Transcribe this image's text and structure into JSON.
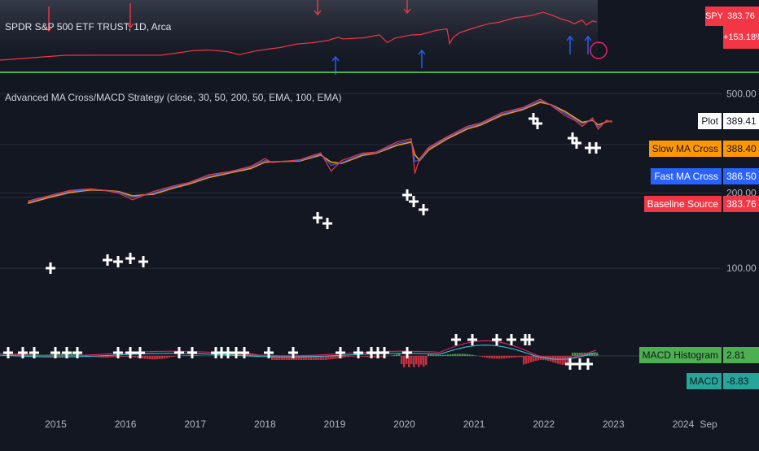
{
  "overlay": {
    "symbol_title": "SPDR S&P 500 ETF TRUST, 1D, Arca",
    "ticker": "SPY",
    "price": "383.76",
    "change": "+153.18%"
  },
  "indicator": {
    "title": "Advanced MA Cross/MACD Strategy (close, 30, 50, 200, 50, EMA, 100, EMA)"
  },
  "legend": [
    {
      "label": "Plot",
      "value": "389.41",
      "color": "#ffffff",
      "text_color": "#131722"
    },
    {
      "label": "Slow MA Cross",
      "value": "388.40",
      "color": "#ff9800",
      "text_color": "#131722"
    },
    {
      "label": "Fast MA Cross",
      "value": "386.50",
      "color": "#2962ff",
      "text_color": "#ffffff"
    },
    {
      "label": "Baseline Source",
      "value": "383.76",
      "color": "#f23645",
      "text_color": "#ffffff"
    },
    {
      "label": "MACD Histogram",
      "value": "2.81",
      "color": "#4caf50",
      "text_color": "#131722"
    },
    {
      "label": "MACD",
      "value": "-8.83",
      "color": "#26a69a",
      "text_color": "#131722"
    }
  ],
  "chart_data": {
    "type": "line",
    "x_ticks": [
      "2015",
      "2016",
      "2017",
      "2018",
      "2019",
      "2020",
      "2021",
      "2022",
      "2023",
      "2024",
      "Sep"
    ],
    "y_ticks": [
      "500.00",
      "200.00",
      "100.00"
    ],
    "y_scale": "log",
    "ylim": [
      55,
      540
    ],
    "x": [
      2014.6,
      2014.9,
      2015.2,
      2015.5,
      2015.7,
      2015.9,
      2016.1,
      2016.4,
      2016.7,
      2016.9,
      2017.2,
      2017.5,
      2017.8,
      2018.0,
      2018.1,
      2018.5,
      2018.8,
      2018.95,
      2019.1,
      2019.4,
      2019.6,
      2019.9,
      2020.1,
      2020.15,
      2020.22,
      2020.35,
      2020.6,
      2020.9,
      2021.1,
      2021.4,
      2021.7,
      2021.95,
      2022.1,
      2022.3,
      2022.45,
      2022.55,
      2022.7,
      2022.78,
      2022.9,
      2022.98
    ],
    "series": [
      {
        "name": "Baseline Source",
        "color": "#f23645",
        "values": [
          186,
          195,
          205,
          208,
          205,
          200,
          188,
          203,
          214,
          220,
          237,
          244,
          256,
          275,
          265,
          272,
          290,
          245,
          270,
          289,
          292,
          321,
          330,
          240,
          275,
          305,
          335,
          370,
          382,
          420,
          440,
          475,
          450,
          410,
          390,
          370,
          400,
          360,
          392,
          383.76
        ]
      },
      {
        "name": "Fast MA Cross",
        "color": "#2962ff",
        "values": [
          184,
          194,
          203,
          207,
          205,
          202,
          192,
          200,
          212,
          219,
          234,
          243,
          254,
          270,
          267,
          270,
          287,
          258,
          265,
          286,
          290,
          316,
          324,
          268,
          271,
          302,
          332,
          366,
          379,
          415,
          436,
          468,
          452,
          418,
          395,
          378,
          394,
          368,
          388,
          386.5
        ]
      },
      {
        "name": "Slow MA Cross",
        "color": "#ff9800",
        "values": [
          182,
          192,
          201,
          206,
          205,
          203,
          195,
          198,
          210,
          217,
          231,
          241,
          251,
          266,
          267,
          269,
          284,
          266,
          263,
          283,
          289,
          311,
          320,
          285,
          270,
          298,
          328,
          361,
          375,
          410,
          432,
          462,
          452,
          425,
          400,
          384,
          391,
          375,
          386,
          388.4
        ]
      }
    ],
    "macd": {
      "legend_values": {
        "histogram": 2.81,
        "macd": -8.83
      }
    }
  }
}
